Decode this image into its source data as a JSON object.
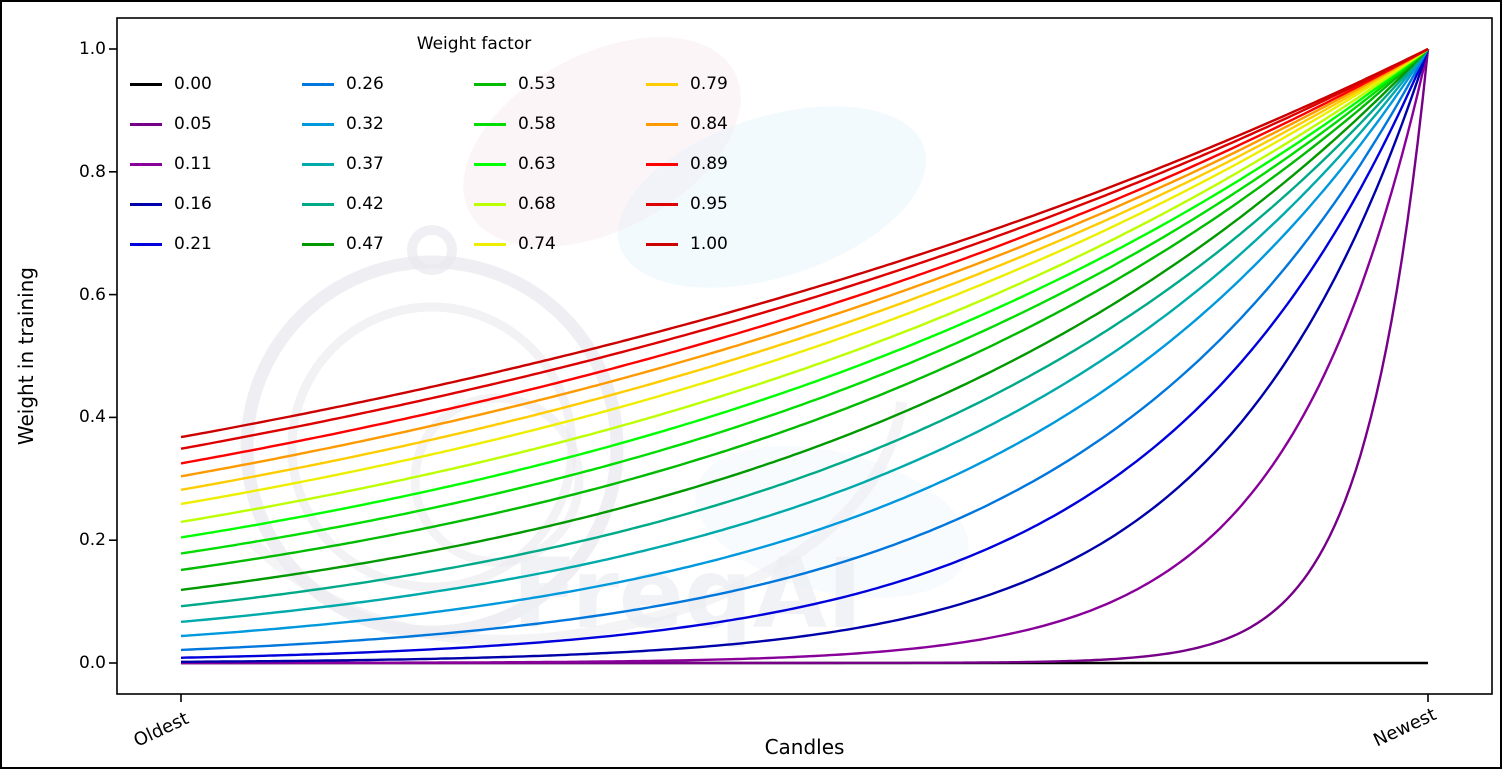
{
  "figure": {
    "watermark": "FreqAI"
  },
  "chart_data": {
    "type": "line",
    "title": "",
    "xlabel": "Candles",
    "ylabel": "Weight in training",
    "x_tick_labels": [
      "Oldest",
      "Newest"
    ],
    "x_tick_positions": [
      0,
      1
    ],
    "y_ticks": [
      0.0,
      0.2,
      0.4,
      0.6,
      0.8,
      1.0
    ],
    "y_tick_labels": [
      "0.0",
      "0.2",
      "0.4",
      "0.6",
      "0.8",
      "1.0"
    ],
    "ylim": [
      -0.05,
      1.05
    ],
    "grid": false,
    "legend_title": "Weight factor",
    "legend_position": "upper left",
    "legend_columns": 4,
    "legend_order": "column-major",
    "curve_formula": "weight(x) = exp(-(1 - x) / factor), x normalized 0=oldest 1=newest; factor 0 stays at 0",
    "sample_x": [
      0,
      0.25,
      0.5,
      0.75,
      1
    ],
    "series": [
      {
        "name": "0.00",
        "factor": 0.0,
        "color": "#000000",
        "values": [
          0,
          0,
          0,
          0,
          0
        ]
      },
      {
        "name": "0.05",
        "factor": 0.05,
        "color": "#770088",
        "values": [
          0,
          0,
          0.0,
          0.0067,
          1
        ]
      },
      {
        "name": "0.11",
        "factor": 0.11,
        "color": "#880099",
        "values": [
          0.0001,
          0.0011,
          0.0106,
          0.1031,
          1
        ]
      },
      {
        "name": "0.16",
        "factor": 0.16,
        "color": "#0000aa",
        "values": [
          0.0019,
          0.0092,
          0.0439,
          0.2096,
          1
        ]
      },
      {
        "name": "0.21",
        "factor": 0.21,
        "color": "#0000dd",
        "values": [
          0.0086,
          0.0281,
          0.0924,
          0.3041,
          1
        ]
      },
      {
        "name": "0.26",
        "factor": 0.26,
        "color": "#0077dd",
        "values": [
          0.0214,
          0.0559,
          0.1461,
          0.3823,
          1
        ]
      },
      {
        "name": "0.32",
        "factor": 0.32,
        "color": "#0099dd",
        "values": [
          0.0439,
          0.096,
          0.2096,
          0.4578,
          1
        ]
      },
      {
        "name": "0.37",
        "factor": 0.37,
        "color": "#00aaaa",
        "values": [
          0.067,
          0.1317,
          0.2589,
          0.5088,
          1
        ]
      },
      {
        "name": "0.42",
        "factor": 0.42,
        "color": "#00aa88",
        "values": [
          0.0924,
          0.1677,
          0.3041,
          0.5515,
          1
        ]
      },
      {
        "name": "0.47",
        "factor": 0.47,
        "color": "#009900",
        "values": [
          0.1191,
          0.2027,
          0.3452,
          0.5875,
          1
        ]
      },
      {
        "name": "0.53",
        "factor": 0.53,
        "color": "#00bb00",
        "values": [
          0.1516,
          0.2429,
          0.3893,
          0.624,
          1
        ]
      },
      {
        "name": "0.58",
        "factor": 0.58,
        "color": "#00dd00",
        "values": [
          0.1783,
          0.2744,
          0.4223,
          0.6498,
          1
        ]
      },
      {
        "name": "0.63",
        "factor": 0.63,
        "color": "#00ff00",
        "values": [
          0.2045,
          0.3041,
          0.4522,
          0.6724,
          1
        ]
      },
      {
        "name": "0.68",
        "factor": 0.68,
        "color": "#bbff00",
        "values": [
          0.2299,
          0.3319,
          0.4794,
          0.6924,
          1
        ]
      },
      {
        "name": "0.74",
        "factor": 0.74,
        "color": "#eeee00",
        "values": [
          0.2589,
          0.363,
          0.5088,
          0.7133,
          1
        ]
      },
      {
        "name": "0.79",
        "factor": 0.79,
        "color": "#ffcc00",
        "values": [
          0.282,
          0.387,
          0.5311,
          0.7287,
          1
        ]
      },
      {
        "name": "0.84",
        "factor": 0.84,
        "color": "#ff9900",
        "values": [
          0.3041,
          0.4095,
          0.5515,
          0.7426,
          1
        ]
      },
      {
        "name": "0.89",
        "factor": 0.89,
        "color": "#ff0000",
        "values": [
          0.3251,
          0.4305,
          0.5702,
          0.7551,
          1
        ]
      },
      {
        "name": "0.95",
        "factor": 0.95,
        "color": "#dd0000",
        "values": [
          0.349,
          0.4541,
          0.5908,
          0.7686,
          1
        ]
      },
      {
        "name": "1.00",
        "factor": 1.0,
        "color": "#cc0000",
        "values": [
          0.3679,
          0.4724,
          0.6065,
          0.7788,
          1
        ]
      }
    ]
  }
}
